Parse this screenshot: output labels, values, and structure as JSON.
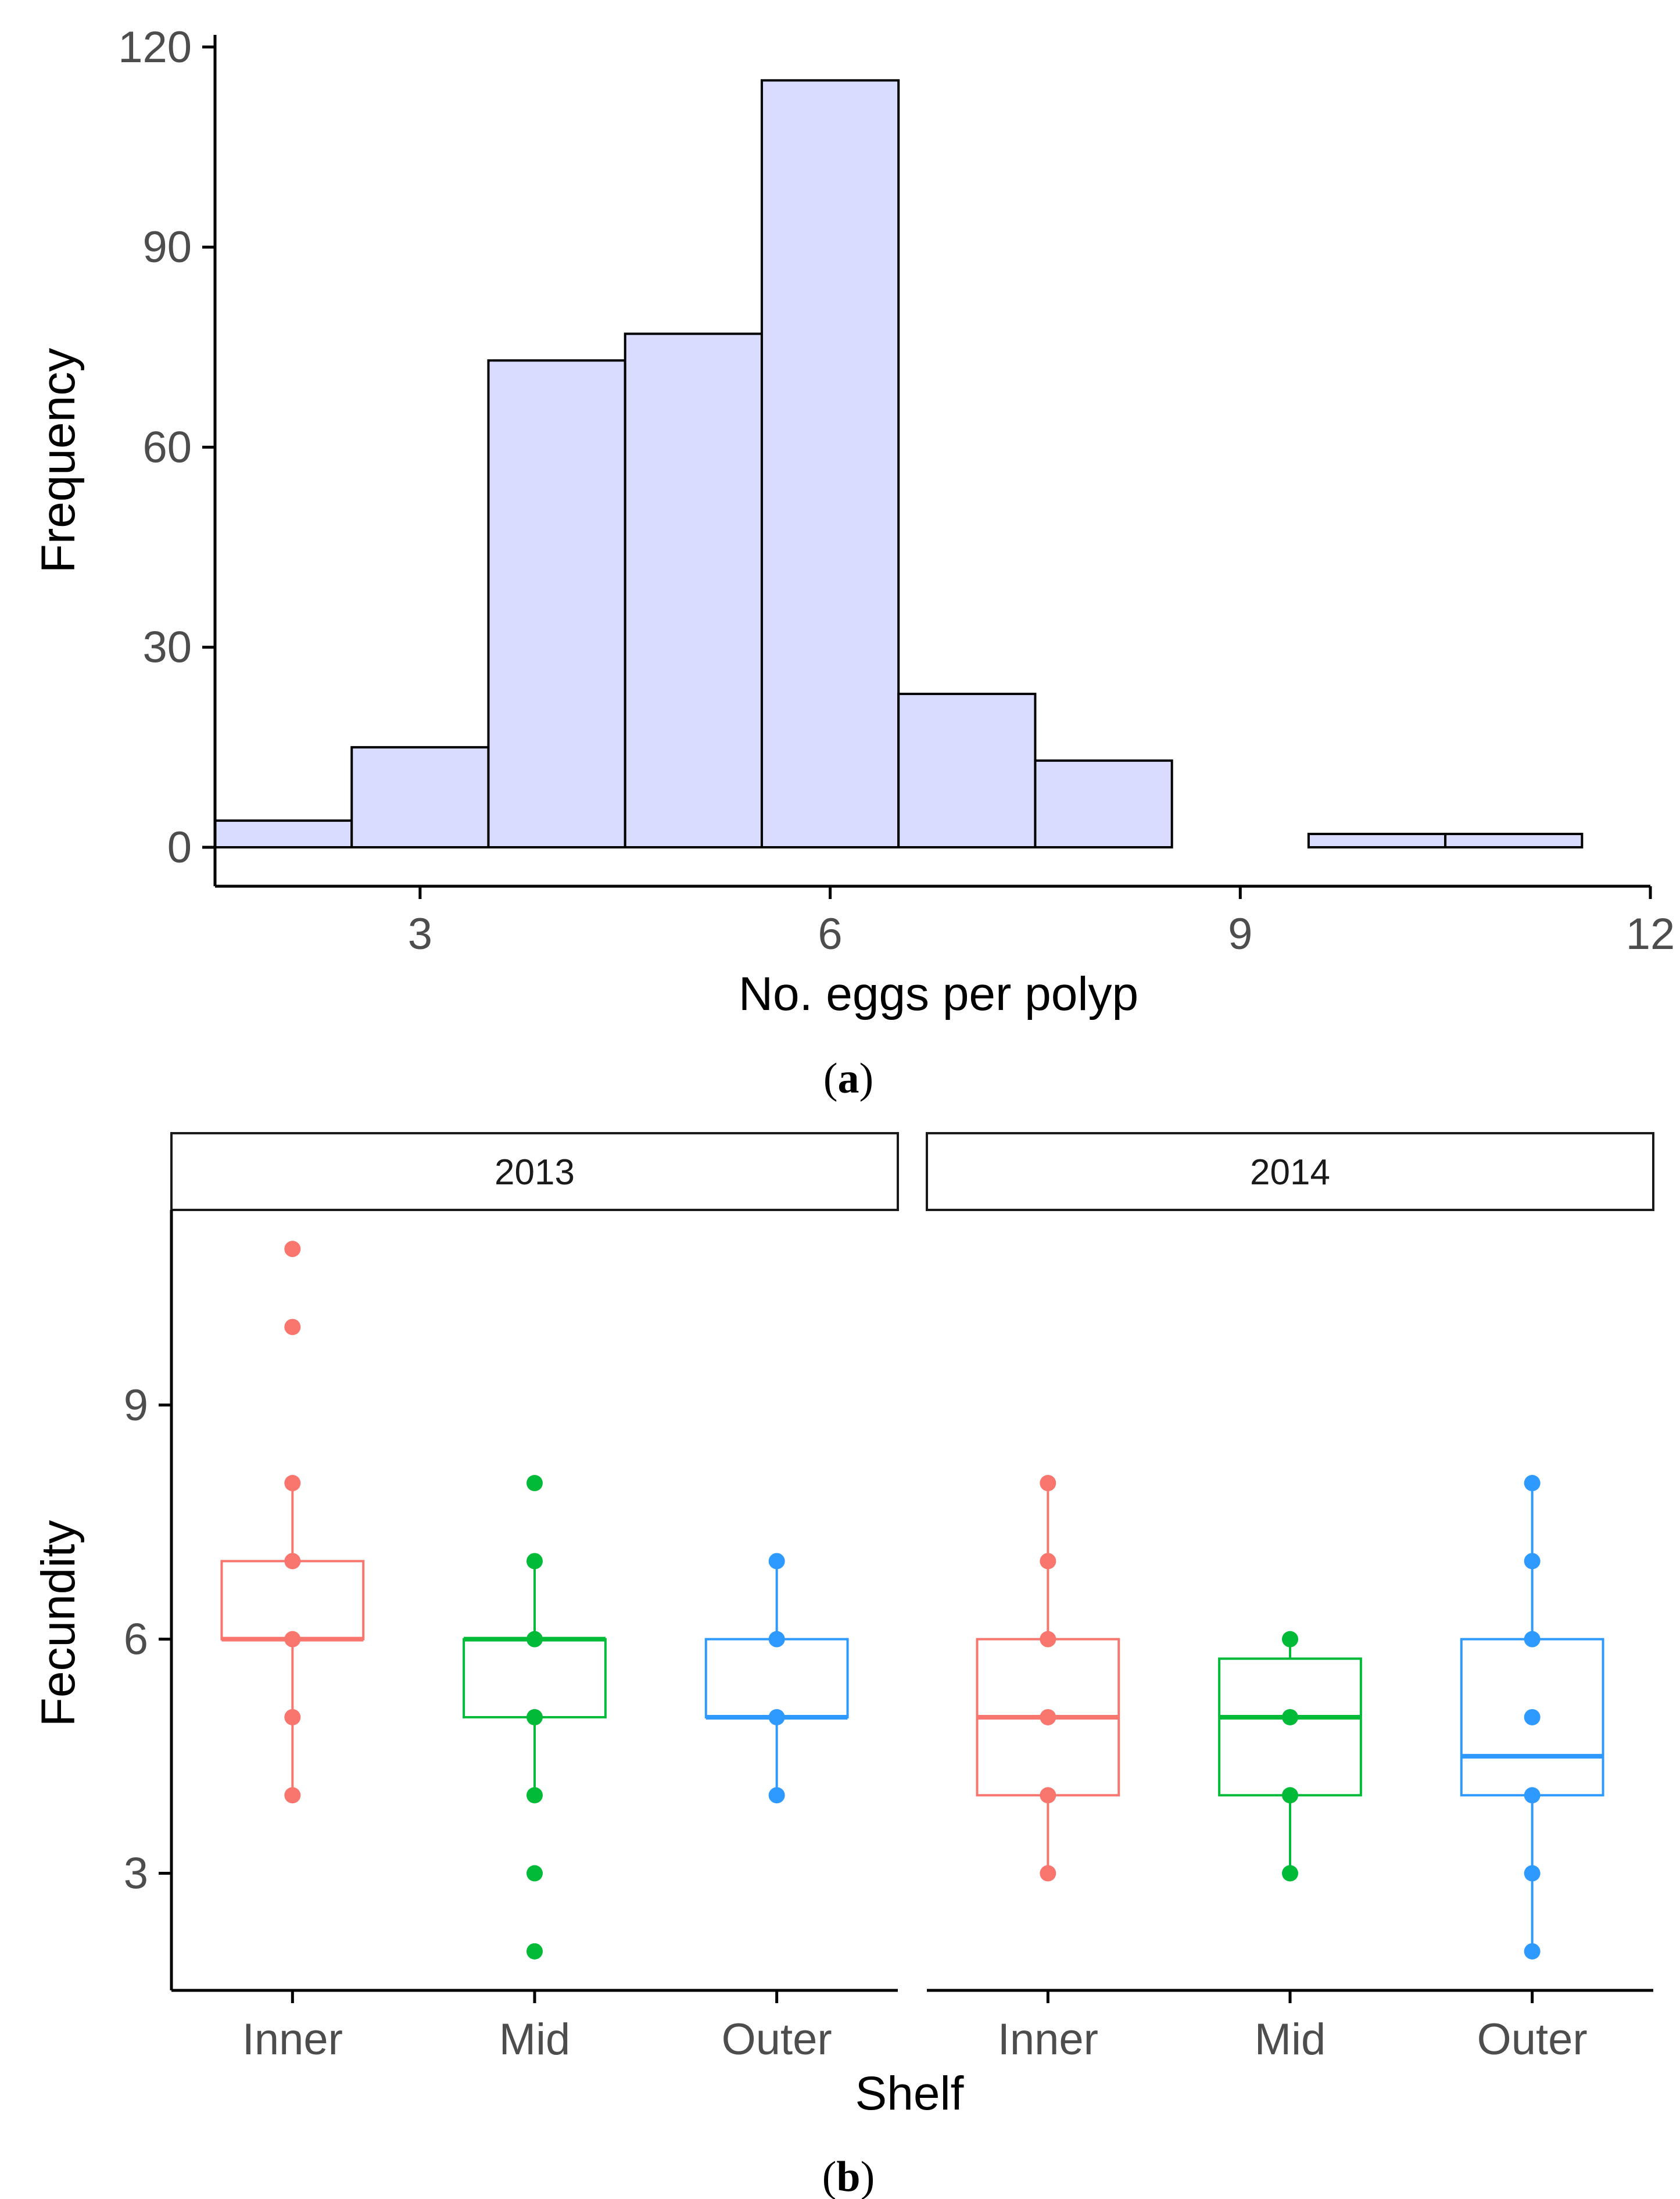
{
  "chart_data": [
    {
      "type": "bar",
      "subtype": "histogram",
      "panel_label": "a",
      "xlabel": "No. eggs per polyp",
      "ylabel": "Frequency",
      "xlim": [
        1.5,
        12
      ],
      "ylim": [
        0,
        120
      ],
      "x_ticks": [
        3,
        6,
        9,
        12
      ],
      "y_ticks": [
        0,
        30,
        60,
        90,
        120
      ],
      "bin_width": 1,
      "bins": [
        {
          "center": 2,
          "count": 4
        },
        {
          "center": 3,
          "count": 15
        },
        {
          "center": 4,
          "count": 73
        },
        {
          "center": 5,
          "count": 77
        },
        {
          "center": 6,
          "count": 115
        },
        {
          "center": 7,
          "count": 23
        },
        {
          "center": 8,
          "count": 13
        },
        {
          "center": 9,
          "count": 0
        },
        {
          "center": 10,
          "count": 2
        },
        {
          "center": 11,
          "count": 2
        }
      ],
      "fill_color": "#d9dbff",
      "edge_color": "#000000"
    },
    {
      "type": "box",
      "panel_label": "b",
      "xlabel": "Shelf",
      "ylabel": "Fecundity",
      "ylim": [
        1.5,
        11.5
      ],
      "y_ticks": [
        3,
        6,
        9
      ],
      "categories": [
        "Inner",
        "Mid",
        "Outer"
      ],
      "colors": {
        "Inner": "#f8766d",
        "Mid": "#00ba38",
        "Outer": "#2e9aff"
      },
      "facets": [
        {
          "label": "2013",
          "groups": [
            {
              "category": "Inner",
              "q1": 6,
              "median": 6,
              "q3": 7,
              "whisker_low": 4,
              "whisker_high": 8,
              "points": [
                4,
                5,
                6,
                7,
                8,
                10,
                11
              ]
            },
            {
              "category": "Mid",
              "q1": 5,
              "median": 6,
              "q3": 6,
              "whisker_low": 4,
              "whisker_high": 7,
              "points": [
                2,
                3,
                4,
                5,
                6,
                7,
                8
              ]
            },
            {
              "category": "Outer",
              "q1": 5,
              "median": 5,
              "q3": 6,
              "whisker_low": 4,
              "whisker_high": 7,
              "points": [
                4,
                5,
                6,
                7
              ]
            }
          ]
        },
        {
          "label": "2014",
          "groups": [
            {
              "category": "Inner",
              "q1": 4,
              "median": 5,
              "q3": 6,
              "whisker_low": 3,
              "whisker_high": 8,
              "points": [
                3,
                4,
                5,
                6,
                7,
                8
              ]
            },
            {
              "category": "Mid",
              "q1": 4,
              "median": 5,
              "q3": 5.75,
              "whisker_low": 3,
              "whisker_high": 6,
              "points": [
                3,
                4,
                5,
                6
              ]
            },
            {
              "category": "Outer",
              "q1": 4,
              "median": 4.5,
              "q3": 6,
              "whisker_low": 2,
              "whisker_high": 8,
              "points": [
                2,
                3,
                4,
                5,
                6,
                7,
                8
              ]
            }
          ]
        }
      ]
    }
  ]
}
